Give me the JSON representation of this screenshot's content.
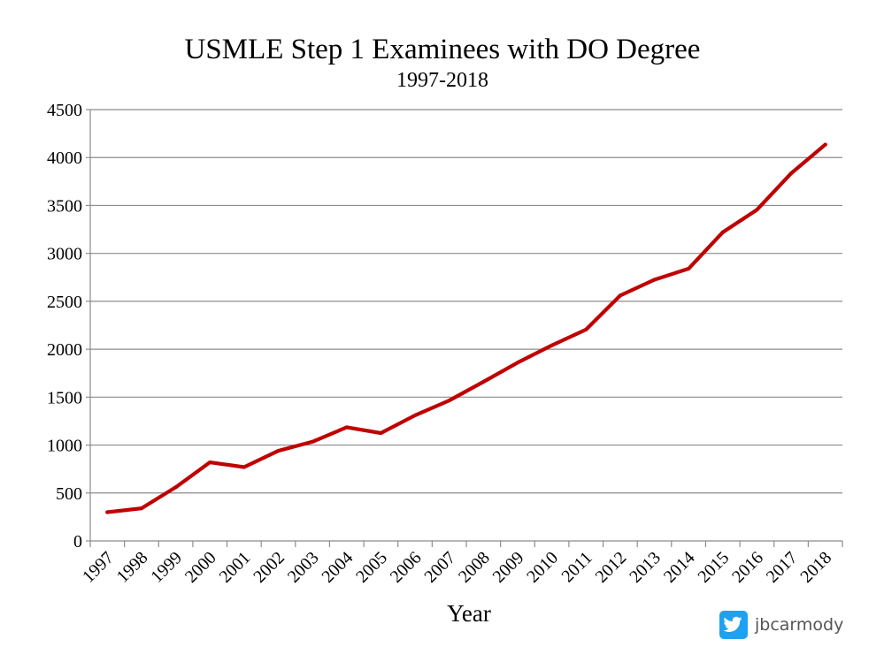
{
  "chart_data": {
    "type": "line",
    "title": "USMLE Step 1 Examinees with DO Degree",
    "subtitle": "1997-2018",
    "xlabel": "Year",
    "ylabel": "",
    "categories": [
      "1997",
      "1998",
      "1999",
      "2000",
      "2001",
      "2002",
      "2003",
      "2004",
      "2005",
      "2006",
      "2007",
      "2008",
      "2009",
      "2010",
      "2011",
      "2012",
      "2013",
      "2014",
      "2015",
      "2016",
      "2017",
      "2018"
    ],
    "series": [
      {
        "values": [
          300,
          340,
          560,
          820,
          770,
          940,
          1035,
          1185,
          1125,
          1310,
          1465,
          1660,
          1860,
          2040,
          2205,
          2560,
          2725,
          2840,
          3220,
          3455,
          3835,
          4135
        ],
        "color": "#c00000"
      }
    ],
    "ylim": [
      0,
      4500
    ],
    "yticks": [
      0,
      500,
      1000,
      1500,
      2000,
      2500,
      3000,
      3500,
      4000,
      4500
    ],
    "grid": true,
    "legend": "none"
  },
  "watermark": {
    "icon": "twitter-bird-icon",
    "handle": "jbcarmody",
    "icon_color": "#1da1f2"
  },
  "colors": {
    "gridline": "#8c8c8c",
    "axis": "#8c8c8c"
  }
}
